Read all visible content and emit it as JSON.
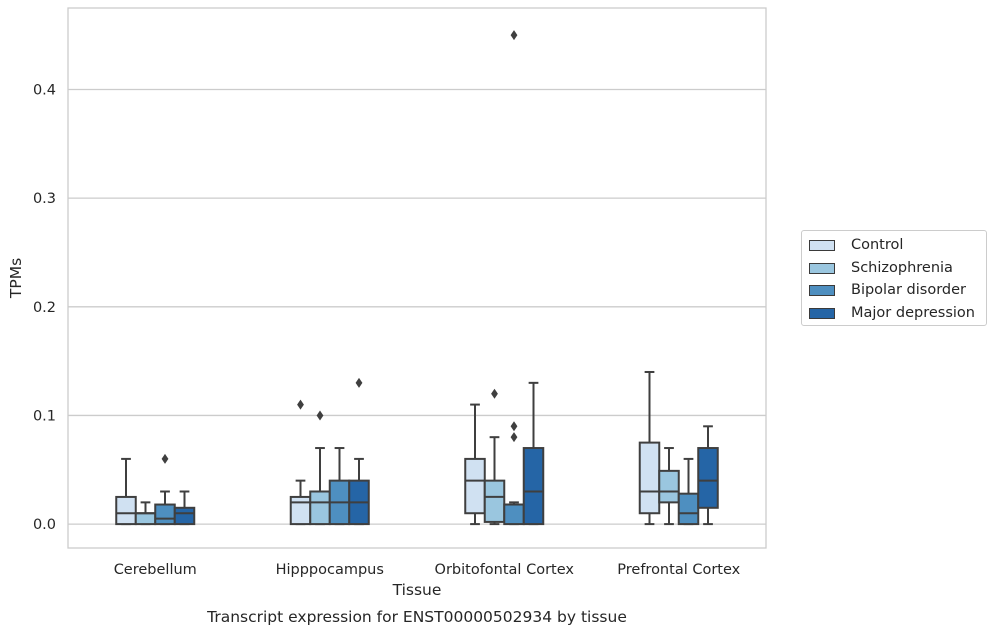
{
  "chart_data": {
    "type": "box",
    "ylabel": "TPMs",
    "xlabel": "Tissue",
    "caption": "Transcript expression for ENST00000502934 by tissue",
    "categories": [
      "Cerebellum",
      "Hipppocampus",
      "Orbitofontal Cortex",
      "Prefrontal Cortex"
    ],
    "y_ticks": [
      "0.0",
      "0.1",
      "0.2",
      "0.3",
      "0.4"
    ],
    "ylim": [
      -0.022,
      0.475
    ],
    "grid": true,
    "legend_position": "right",
    "series": [
      {
        "name": "Control",
        "color": "#d0e1f2",
        "boxes": [
          {
            "whislo": 0.0,
            "q1": 0.0,
            "med": 0.01,
            "q3": 0.025,
            "whishi": 0.06,
            "fliers": []
          },
          {
            "whislo": 0.0,
            "q1": 0.0,
            "med": 0.02,
            "q3": 0.025,
            "whishi": 0.04,
            "fliers": [
              0.11
            ]
          },
          {
            "whislo": 0.0,
            "q1": 0.01,
            "med": 0.04,
            "q3": 0.06,
            "whishi": 0.11,
            "fliers": []
          },
          {
            "whislo": 0.0,
            "q1": 0.01,
            "med": 0.03,
            "q3": 0.075,
            "whishi": 0.14,
            "fliers": []
          }
        ]
      },
      {
        "name": "Schizophrenia",
        "color": "#9ac6df",
        "boxes": [
          {
            "whislo": 0.0,
            "q1": 0.0,
            "med": 0.01,
            "q3": 0.01,
            "whishi": 0.02,
            "fliers": []
          },
          {
            "whislo": 0.0,
            "q1": 0.0,
            "med": 0.02,
            "q3": 0.03,
            "whishi": 0.07,
            "fliers": [
              0.1
            ]
          },
          {
            "whislo": 0.0,
            "q1": 0.002,
            "med": 0.025,
            "q3": 0.04,
            "whishi": 0.08,
            "fliers": [
              0.12
            ]
          },
          {
            "whislo": 0.0,
            "q1": 0.02,
            "med": 0.03,
            "q3": 0.049,
            "whishi": 0.07,
            "fliers": []
          }
        ]
      },
      {
        "name": "Bipolar disorder",
        "color": "#4e8fc0",
        "boxes": [
          {
            "whislo": 0.0,
            "q1": 0.0,
            "med": 0.005,
            "q3": 0.018,
            "whishi": 0.03,
            "fliers": [
              0.06
            ]
          },
          {
            "whislo": 0.0,
            "q1": 0.0,
            "med": 0.02,
            "q3": 0.04,
            "whishi": 0.07,
            "fliers": []
          },
          {
            "whislo": 0.0,
            "q1": 0.0,
            "med": 0.018,
            "q3": 0.018,
            "whishi": 0.02,
            "fliers": [
              0.08,
              0.09,
              0.45
            ]
          },
          {
            "whislo": 0.0,
            "q1": 0.0,
            "med": 0.01,
            "q3": 0.028,
            "whishi": 0.06,
            "fliers": []
          }
        ]
      },
      {
        "name": "Major depression",
        "color": "#2565a6",
        "boxes": [
          {
            "whislo": 0.0,
            "q1": 0.0,
            "med": 0.01,
            "q3": 0.015,
            "whishi": 0.03,
            "fliers": []
          },
          {
            "whislo": 0.0,
            "q1": 0.0,
            "med": 0.02,
            "q3": 0.04,
            "whishi": 0.06,
            "fliers": [
              0.13
            ]
          },
          {
            "whislo": 0.0,
            "q1": 0.0,
            "med": 0.03,
            "q3": 0.07,
            "whishi": 0.13,
            "fliers": []
          },
          {
            "whislo": 0.0,
            "q1": 0.015,
            "med": 0.04,
            "q3": 0.07,
            "whishi": 0.09,
            "fliers": []
          }
        ]
      }
    ]
  }
}
